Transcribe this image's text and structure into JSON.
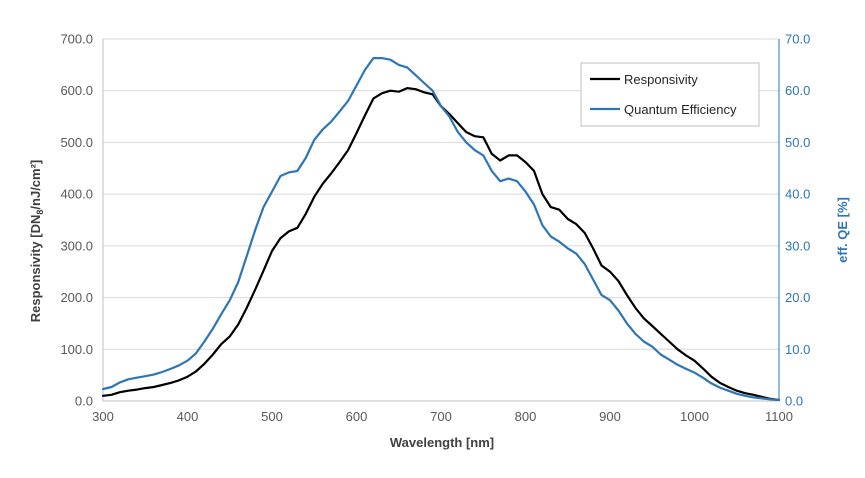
{
  "chart_data": {
    "type": "line",
    "xlabel": "Wavelength [nm]",
    "ylabel": "Responsivity [DN",
    "ylabel_sub": "8",
    "ylabel_suffix": "/nJ/cm²]",
    "y2label": "eff. QE [%]",
    "xlim": [
      300,
      1100
    ],
    "ylim": [
      0,
      700
    ],
    "y2lim": [
      0,
      70
    ],
    "xticks": [
      "300",
      "400",
      "500",
      "600",
      "700",
      "800",
      "900",
      "1000",
      "1100"
    ],
    "yticks": [
      "0.0",
      "100.0",
      "200.0",
      "300.0",
      "400.0",
      "500.0",
      "600.0",
      "700.0"
    ],
    "y2ticks": [
      "0.0",
      "10.0",
      "20.0",
      "30.0",
      "40.0",
      "50.0",
      "60.0",
      "70.0"
    ],
    "grid": "horizontal",
    "legend_position": "top-right",
    "colors": {
      "responsivity": "#000000",
      "qe": "#2e75b6",
      "grid": "#d9d9d9",
      "axis": "#bfbfbf"
    },
    "series": [
      {
        "name": "Responsivity",
        "axis": "left",
        "x": [
          300,
          310,
          320,
          330,
          340,
          350,
          360,
          370,
          380,
          390,
          400,
          410,
          420,
          430,
          440,
          450,
          460,
          470,
          480,
          490,
          500,
          510,
          520,
          530,
          540,
          550,
          560,
          570,
          580,
          590,
          600,
          610,
          620,
          630,
          640,
          650,
          660,
          670,
          680,
          690,
          700,
          710,
          720,
          730,
          740,
          750,
          760,
          770,
          780,
          790,
          800,
          810,
          820,
          830,
          840,
          850,
          860,
          870,
          880,
          890,
          900,
          910,
          920,
          930,
          940,
          950,
          960,
          970,
          980,
          990,
          1000,
          1010,
          1020,
          1030,
          1040,
          1050,
          1060,
          1070,
          1080,
          1090,
          1100
        ],
        "values": [
          10,
          12,
          17,
          20,
          22,
          25,
          27,
          31,
          35,
          40,
          47,
          57,
          72,
          90,
          110,
          125,
          148,
          180,
          215,
          252,
          290,
          315,
          328,
          335,
          362,
          395,
          420,
          440,
          462,
          485,
          518,
          552,
          585,
          595,
          600,
          598,
          605,
          603,
          597,
          593,
          570,
          555,
          537,
          520,
          512,
          510,
          478,
          465,
          475,
          475,
          462,
          445,
          400,
          375,
          370,
          352,
          342,
          325,
          295,
          262,
          250,
          232,
          205,
          180,
          160,
          145,
          130,
          115,
          100,
          88,
          78,
          63,
          47,
          35,
          27,
          20,
          15,
          12,
          8,
          4,
          2
        ]
      },
      {
        "name": "Quantum Efficiency",
        "axis": "right",
        "x": [
          300,
          310,
          320,
          330,
          340,
          350,
          360,
          370,
          380,
          390,
          400,
          410,
          420,
          430,
          440,
          450,
          460,
          470,
          480,
          490,
          500,
          510,
          520,
          530,
          540,
          550,
          560,
          570,
          580,
          590,
          600,
          610,
          620,
          630,
          640,
          650,
          660,
          670,
          680,
          690,
          700,
          710,
          720,
          730,
          740,
          750,
          760,
          770,
          780,
          790,
          800,
          810,
          820,
          830,
          840,
          850,
          860,
          870,
          880,
          890,
          900,
          910,
          920,
          930,
          940,
          950,
          960,
          970,
          980,
          990,
          1000,
          1010,
          1020,
          1030,
          1040,
          1050,
          1060,
          1070,
          1080,
          1090,
          1100
        ],
        "values": [
          2.3,
          2.7,
          3.6,
          4.2,
          4.5,
          4.8,
          5.1,
          5.6,
          6.2,
          6.9,
          7.8,
          9.2,
          11.5,
          14,
          16.8,
          19.5,
          23,
          28,
          33,
          37.5,
          40.5,
          43.5,
          44.2,
          44.5,
          47,
          50.5,
          52.5,
          54,
          56,
          58,
          61,
          64,
          66.3,
          66.3,
          66,
          65,
          64.5,
          63,
          61.5,
          60,
          57,
          55,
          52,
          50,
          48.5,
          47.5,
          44.5,
          42.5,
          43,
          42.5,
          40.5,
          38,
          34,
          31.8,
          30.8,
          29.5,
          28.5,
          26.5,
          23.5,
          20.5,
          19.5,
          17.5,
          15,
          13,
          11.5,
          10.5,
          9,
          8,
          7,
          6.2,
          5.5,
          4.5,
          3.4,
          2.6,
          2,
          1.4,
          1,
          0.7,
          0.5,
          0.3,
          0.2
        ]
      }
    ]
  }
}
